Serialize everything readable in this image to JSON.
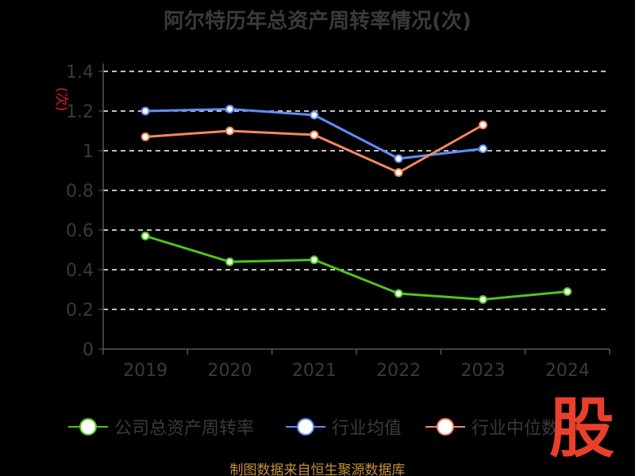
{
  "chart_data": {
    "type": "line",
    "title": "阿尔特历年总资产周转率情况(次)",
    "ylabel": "(次)",
    "categories": [
      "2019",
      "2020",
      "2021",
      "2022",
      "2023",
      "2024"
    ],
    "yticks": [
      "0",
      "0.2",
      "0.4",
      "0.6",
      "0.8",
      "1",
      "1.2",
      "1.4"
    ],
    "ylim": [
      0,
      1.4
    ],
    "grid": "horizontal dashed",
    "legend_position": "bottom",
    "series": [
      {
        "name": "公司总资产周转率",
        "color": "#52c41a",
        "values": [
          0.57,
          0.44,
          0.45,
          0.28,
          0.25,
          0.29
        ]
      },
      {
        "name": "行业均值",
        "color": "#5b8ff9",
        "values": [
          1.2,
          1.21,
          1.18,
          0.96,
          1.01,
          null
        ]
      },
      {
        "name": "行业中位数",
        "color": "#f4895f",
        "values": [
          1.07,
          1.1,
          1.08,
          0.89,
          1.13,
          null
        ]
      }
    ]
  },
  "legend": {
    "items": [
      {
        "label": "公司总资产周转率",
        "color": "#52c41a"
      },
      {
        "label": "行业均值",
        "color": "#5b8ff9"
      },
      {
        "label": "行业中位数",
        "color": "#f4895f"
      }
    ]
  },
  "footer": {
    "source": "制图数据来自恒生聚源数据库"
  },
  "watermark": {
    "text": "股"
  }
}
